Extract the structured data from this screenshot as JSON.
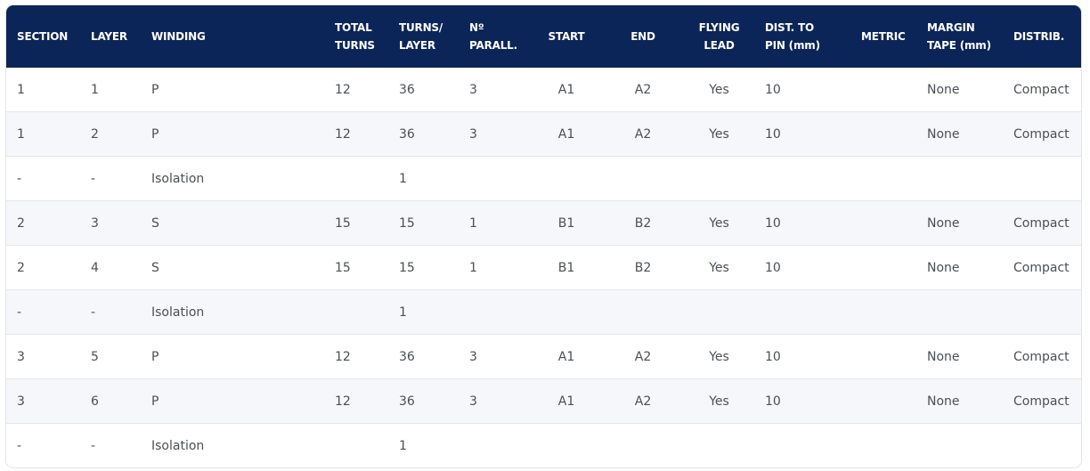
{
  "table": {
    "columns": [
      "SECTION",
      "LAYER",
      "WINDING",
      "TOTAL\nTURNS",
      "TURNS/\nLAYER",
      "Nº\nPARALL.",
      "START",
      "END",
      "FLYING\nLEAD",
      "DIST. TO\nPIN (mm)",
      "METRIC",
      "MARGIN\nTAPE (mm)",
      "DISTRIB."
    ],
    "rows": [
      [
        "1",
        "1",
        "P",
        "12",
        "36",
        "3",
        "A1",
        "A2",
        "Yes",
        "10",
        null,
        "None",
        "Compact"
      ],
      [
        "1",
        "2",
        "P",
        "12",
        "36",
        "3",
        "A1",
        "A2",
        "Yes",
        "10",
        null,
        "None",
        "Compact"
      ],
      [
        "-",
        "-",
        "Isolation",
        null,
        "1",
        null,
        null,
        null,
        null,
        null,
        null,
        null,
        null
      ],
      [
        "2",
        "3",
        "S",
        "15",
        "15",
        "1",
        "B1",
        "B2",
        "Yes",
        "10",
        null,
        "None",
        "Compact"
      ],
      [
        "2",
        "4",
        "S",
        "15",
        "15",
        "1",
        "B1",
        "B2",
        "Yes",
        "10",
        null,
        "None",
        "Compact"
      ],
      [
        "-",
        "-",
        "Isolation",
        null,
        "1",
        null,
        null,
        null,
        null,
        null,
        null,
        null,
        null
      ],
      [
        "3",
        "5",
        "P",
        "12",
        "36",
        "3",
        "A1",
        "A2",
        "Yes",
        "10",
        null,
        "None",
        "Compact"
      ],
      [
        "3",
        "6",
        "P",
        "12",
        "36",
        "3",
        "A1",
        "A2",
        "Yes",
        "10",
        null,
        "None",
        "Compact"
      ],
      [
        "-",
        "-",
        "Isolation",
        null,
        "1",
        null,
        null,
        null,
        null,
        null,
        null,
        null,
        null
      ]
    ]
  }
}
